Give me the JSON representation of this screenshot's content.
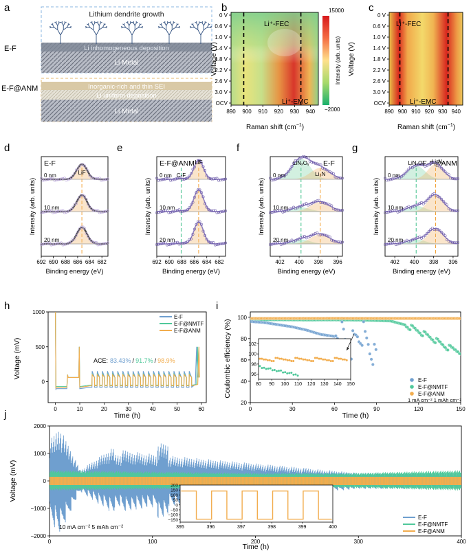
{
  "panel_letters": [
    "a",
    "b",
    "c",
    "d",
    "e",
    "f",
    "g",
    "h",
    "i",
    "j"
  ],
  "colors": {
    "ef": "#6f9fcf",
    "nmtf": "#4fc89a",
    "anm": "#f2ad4e",
    "dash": "#f2a33a",
    "green_dash": "#3fc08a",
    "dark_curve": "#4d4d4d"
  },
  "panel_a": {
    "label_top": "E-F",
    "label_bottom": "E-F@ANM",
    "title": "Lithium dendrite growth",
    "top_deposit": "Li inhomogeneous deposition",
    "top_metal": "Li Metal",
    "sei": "Inorganic-rich and thin SEI",
    "bottom_deposit": "Li uniform deposition",
    "bottom_metal": "Li Metal"
  },
  "raman": {
    "ylabel": "Voltage (V)",
    "xlabel_text": "Raman shift (cm",
    "xlabel_sup": "−1",
    "xlabel_close": ")",
    "xticks": [
      "890",
      "900",
      "910",
      "920",
      "930",
      "940"
    ],
    "yticks": [
      "0 V",
      "0.6 V",
      "1.0 V",
      "1.4 V",
      "1.8 V",
      "2.2 V",
      "2.6 V",
      "3.0 V",
      "OCV"
    ],
    "label_fec": "Li⁺-FEC",
    "label_emc": "Li⁺-EMC",
    "colorbar_label": "Intensity (arb. units)",
    "colorbar_max": "15000",
    "colorbar_min": "−2000"
  },
  "xps_common": {
    "ylabel": "Intensity (arb. units)",
    "xlabel": "Binding energy (eV)"
  },
  "panel_d": {
    "title": "E-F",
    "peak": "LiF",
    "depths": [
      "0 nm",
      "10 nm",
      "20 nm"
    ],
    "xticks": [
      "692",
      "690",
      "688",
      "686",
      "684",
      "682"
    ]
  },
  "panel_e": {
    "title": "E-F@ANM",
    "peak": "LiF",
    "peak2": "C-F",
    "depths": [
      "0 nm",
      "10 nm",
      "20 nm"
    ],
    "xticks": [
      "692",
      "690",
      "688",
      "686",
      "684",
      "682"
    ]
  },
  "panel_f": {
    "title": "E-F",
    "peak": "LiNxOy",
    "peak2": "Li₃N",
    "depths": [
      "0 nm",
      "10 nm",
      "20 nm"
    ],
    "xticks": [
      "402",
      "400",
      "398",
      "396"
    ]
  },
  "panel_g": {
    "title": "E-F@ANM",
    "peak": "LiNxOy",
    "peak2": "Li₃N",
    "depths": [
      "0 nm",
      "10 nm",
      "20 nm"
    ],
    "xticks": [
      "402",
      "400",
      "398",
      "396"
    ]
  },
  "panel_h": {
    "ylabel": "Voltage (mV)",
    "xlabel": "Time (h)",
    "legend": [
      "E-F",
      "E-F@NMTF",
      "E-F@ANM"
    ],
    "ace_label": "ACE:",
    "ace_values": [
      "83.43%",
      "91.7%",
      "98.9%"
    ],
    "ace_sep": "/",
    "xticks": [
      "0",
      "10",
      "20",
      "30",
      "40",
      "50",
      "60"
    ],
    "yticks": [
      "0",
      "500",
      "1000"
    ]
  },
  "panel_i": {
    "ylabel": "Coulombic efficiency (%)",
    "xlabel": "Time (h)",
    "legend": [
      "E-F",
      "E-F@NMTF",
      "E-F@ANM"
    ],
    "condition": "1 mA cm⁻² 1 mAh cm⁻²",
    "xticks": [
      "0",
      "30",
      "60",
      "90",
      "120",
      "150"
    ],
    "yticks": [
      "20",
      "40",
      "60",
      "80",
      "100"
    ],
    "inset_xticks": [
      "80",
      "90",
      "100",
      "110",
      "120",
      "130",
      "140",
      "150"
    ],
    "inset_yticks": [
      "96",
      "98",
      "100",
      "102"
    ]
  },
  "panel_j": {
    "ylabel": "Voltage (mV)",
    "xlabel": "Time (h)",
    "legend": [
      "E-F",
      "E-F@NMTF",
      "E-F@ANM"
    ],
    "condition": "10 mA cm⁻² 5 mAh cm⁻²",
    "xticks": [
      "0",
      "100",
      "200",
      "300",
      "400"
    ],
    "yticks": [
      "−2000",
      "−1000",
      "0",
      "1000",
      "2000"
    ],
    "inset_xticks": [
      "395",
      "396",
      "397",
      "398",
      "399",
      "400"
    ],
    "inset_yticks": [
      "−150",
      "−100",
      "−50",
      "0",
      "50",
      "100",
      "150",
      "200"
    ]
  },
  "chart_data": [
    {
      "type": "heatmap",
      "panel": "b",
      "xlabel": "Raman shift (cm−1)",
      "ylabel": "Voltage (V)",
      "xlim": [
        890,
        945
      ],
      "yticks": [
        "0 V",
        "0.6 V",
        "1.0 V",
        "1.4 V",
        "1.8 V",
        "2.2 V",
        "2.6 V",
        "3.0 V",
        "OCV"
      ],
      "colorbar": [
        -2000,
        15000
      ],
      "marker_lines": [
        {
          "name": "Li+-FEC",
          "x": 898
        },
        {
          "name": "Li+-EMC",
          "x": 934
        }
      ]
    },
    {
      "type": "heatmap",
      "panel": "c",
      "xlabel": "Raman shift (cm−1)",
      "ylabel": "Voltage (V)",
      "xlim": [
        890,
        945
      ],
      "yticks": [
        "0 V",
        "0.6 V",
        "1.0 V",
        "1.4 V",
        "1.8 V",
        "2.2 V",
        "2.6 V",
        "3.0 V",
        "OCV"
      ],
      "marker_lines": [
        {
          "name": "Li+-FEC",
          "x": 898
        },
        {
          "name": "Li+-EMC",
          "x": 934
        }
      ]
    },
    {
      "type": "line",
      "panel": "d",
      "xlabel": "Binding energy (eV)",
      "xlim": [
        692,
        681
      ],
      "peaks": [
        {
          "name": "LiF",
          "x": 685.3
        }
      ],
      "depths": [
        "0 nm",
        "10 nm",
        "20 nm"
      ]
    },
    {
      "type": "line",
      "panel": "e",
      "xlabel": "Binding energy (eV)",
      "xlim": [
        692,
        681
      ],
      "peaks": [
        {
          "name": "LiF",
          "x": 685.3
        },
        {
          "name": "C-F",
          "x": 688.1
        }
      ],
      "depths": [
        "0 nm",
        "10 nm",
        "20 nm"
      ]
    },
    {
      "type": "line",
      "panel": "f",
      "xlabel": "Binding energy (eV)",
      "xlim": [
        403,
        395.5
      ],
      "peaks": [
        {
          "name": "LiNxOy",
          "x": 399.8
        },
        {
          "name": "Li3N",
          "x": 397.8
        }
      ],
      "depths": [
        "0 nm",
        "10 nm",
        "20 nm"
      ]
    },
    {
      "type": "line",
      "panel": "g",
      "xlabel": "Binding energy (eV)",
      "xlim": [
        403,
        395.5
      ],
      "peaks": [
        {
          "name": "LiNxOy",
          "x": 399.8
        },
        {
          "name": "Li3N",
          "x": 397.8
        }
      ],
      "depths": [
        "0 nm",
        "10 nm",
        "20 nm"
      ]
    },
    {
      "type": "line",
      "panel": "h",
      "xlabel": "Time (h)",
      "ylabel": "Voltage (mV)",
      "xlim": [
        -3,
        62
      ],
      "ylim": [
        -300,
        1000
      ],
      "series": [
        {
          "name": "E-F",
          "ace": "83.43%"
        },
        {
          "name": "E-F@NMTF",
          "ace": "91.7%"
        },
        {
          "name": "E-F@ANM",
          "ace": "98.9%"
        }
      ]
    },
    {
      "type": "scatter",
      "panel": "i",
      "xlabel": "Time (h)",
      "ylabel": "Coulombic efficiency (%)",
      "xlim": [
        0,
        150
      ],
      "ylim": [
        20,
        105
      ],
      "series": [
        {
          "name": "E-F",
          "x": [
            0,
            10,
            20,
            30,
            40,
            50,
            60,
            65,
            70,
            75,
            80,
            85,
            90
          ],
          "values": [
            96,
            95,
            93,
            91,
            88,
            84,
            82,
            85,
            68,
            80,
            86,
            72,
            63
          ]
        },
        {
          "name": "E-F@NMTF",
          "x": [
            0,
            20,
            40,
            60,
            80,
            100,
            110,
            120,
            130,
            140,
            150
          ],
          "values": [
            97.5,
            97.6,
            97.4,
            97.5,
            97.3,
            96.5,
            93,
            87,
            80,
            72,
            68
          ]
        },
        {
          "name": "E-F@ANM",
          "x": [
            0,
            30,
            60,
            90,
            120,
            150
          ],
          "values": [
            98.9,
            98.9,
            99,
            98.9,
            98.9,
            98.9
          ]
        }
      ]
    },
    {
      "type": "line",
      "panel": "j",
      "xlabel": "Time (h)",
      "ylabel": "Voltage (mV)",
      "xlim": [
        0,
        400
      ],
      "ylim": [
        -2000,
        2000
      ],
      "series": [
        {
          "name": "E-F",
          "x": [
            0,
            10,
            20,
            30,
            60,
            100,
            300,
            400
          ],
          "values": [
            1500,
            2000,
            1200,
            400,
            1200,
            1000,
            300,
            300
          ]
        },
        {
          "name": "E-F@NMTF",
          "x": [
            0,
            100,
            200,
            300,
            400
          ],
          "values": [
            400,
            350,
            300,
            300,
            400
          ]
        },
        {
          "name": "E-F@ANM",
          "x": [
            0,
            100,
            200,
            300,
            400
          ],
          "values": [
            150,
            150,
            150,
            150,
            150
          ]
        }
      ]
    }
  ]
}
